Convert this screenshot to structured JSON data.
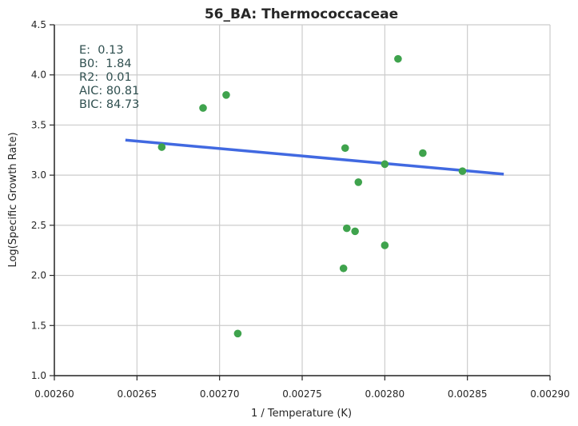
{
  "chart_data": {
    "type": "scatter",
    "title": "56_BA: Thermococcaceae",
    "xlabel": "1 / Temperature (K)",
    "ylabel": "Log(Specific Growth Rate)",
    "xlim": [
      0.0026,
      0.0029
    ],
    "ylim": [
      1.0,
      4.5
    ],
    "x_ticks": [
      "0.00260",
      "0.00265",
      "0.00270",
      "0.00275",
      "0.00280",
      "0.00285",
      "0.00290"
    ],
    "y_ticks": [
      "1.0",
      "1.5",
      "2.0",
      "2.5",
      "3.0",
      "3.5",
      "4.0",
      "4.5"
    ],
    "grid": true,
    "points": [
      {
        "x": 0.002665,
        "y": 3.28
      },
      {
        "x": 0.00269,
        "y": 3.67
      },
      {
        "x": 0.002704,
        "y": 3.8
      },
      {
        "x": 0.002711,
        "y": 1.42
      },
      {
        "x": 0.002775,
        "y": 2.07
      },
      {
        "x": 0.002776,
        "y": 3.27
      },
      {
        "x": 0.002777,
        "y": 2.47
      },
      {
        "x": 0.002782,
        "y": 2.44
      },
      {
        "x": 0.002784,
        "y": 2.93
      },
      {
        "x": 0.0028,
        "y": 3.11
      },
      {
        "x": 0.0028,
        "y": 2.3
      },
      {
        "x": 0.002808,
        "y": 4.16
      },
      {
        "x": 0.002823,
        "y": 3.22
      },
      {
        "x": 0.002847,
        "y": 3.04
      }
    ],
    "fit_line": {
      "x": [
        0.002643,
        0.002872
      ],
      "y": [
        3.35,
        3.01
      ]
    },
    "annotations": [
      "E:  0.13",
      "B0:  1.84",
      "R2:  0.01",
      "AIC: 80.81",
      "BIC: 84.73"
    ],
    "colors": {
      "points": "#3fa34d",
      "fit_line": "#4169e1",
      "annotation": "#2F4F4F",
      "grid": "#cccccc"
    }
  }
}
